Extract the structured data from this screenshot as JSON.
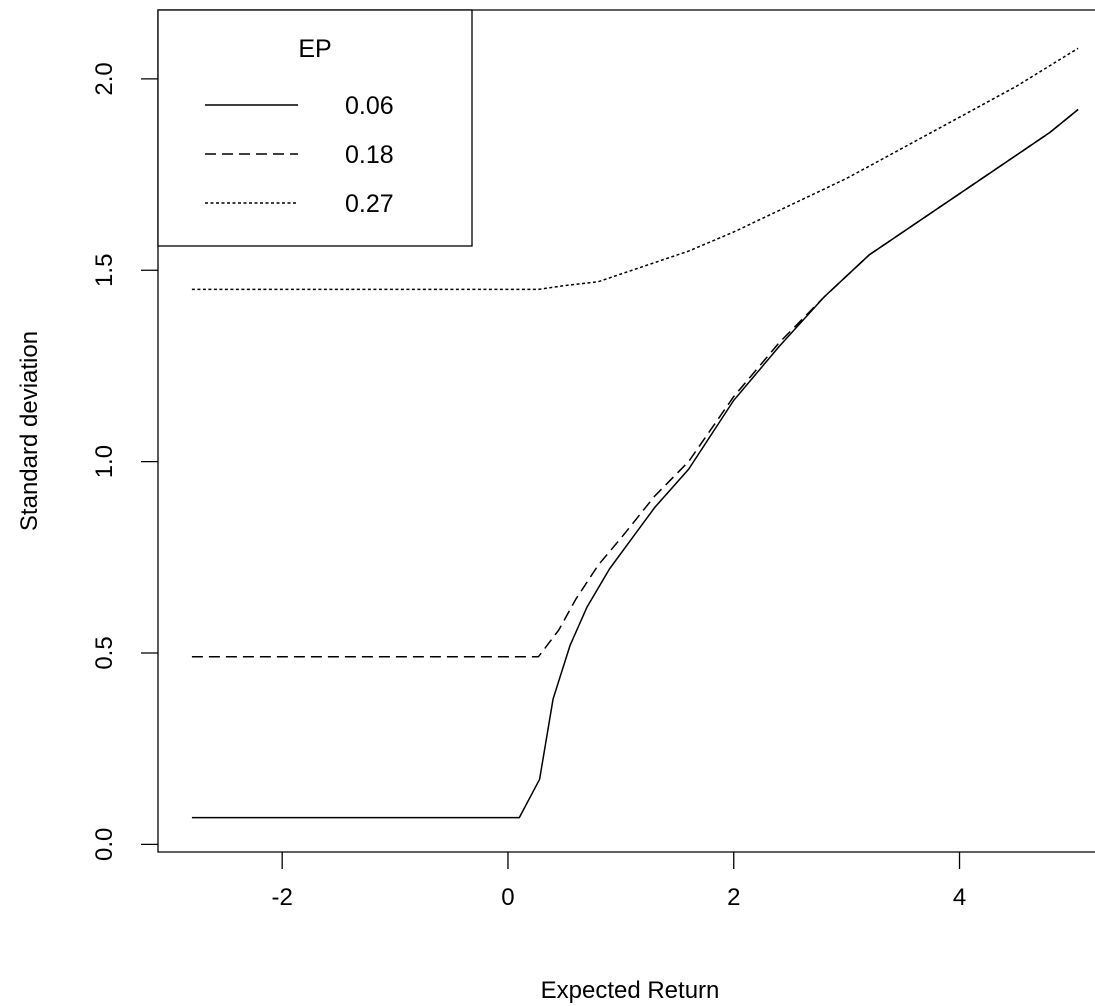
{
  "chart_data": {
    "type": "line",
    "xlabel": "Expected Return",
    "ylabel": "Standard deviation",
    "xlim": [
      -3.1,
      5.2
    ],
    "ylim": [
      -0.02,
      2.18
    ],
    "x_ticks": [
      -2,
      0,
      2,
      4
    ],
    "x_tick_labels": [
      "-2",
      "0",
      "2",
      "4"
    ],
    "y_ticks": [
      0.0,
      0.5,
      1.0,
      1.5,
      2.0
    ],
    "y_tick_labels": [
      "0.0",
      "0.5",
      "1.0",
      "1.5",
      "2.0"
    ],
    "grid": false,
    "legend": {
      "title": "EP",
      "position": "top-left",
      "entries": [
        "0.06",
        "0.18",
        "0.27"
      ]
    },
    "series": [
      {
        "name": "0.06",
        "line_style": "solid",
        "x": [
          -2.8,
          -1.5,
          -0.5,
          0.1,
          0.28,
          0.4,
          0.55,
          0.7,
          0.9,
          1.1,
          1.3,
          1.6,
          2.0,
          2.4,
          2.8,
          3.2,
          3.6,
          4.0,
          4.4,
          4.8,
          5.05
        ],
        "y": [
          0.07,
          0.07,
          0.07,
          0.07,
          0.17,
          0.38,
          0.52,
          0.62,
          0.72,
          0.8,
          0.88,
          0.98,
          1.16,
          1.3,
          1.43,
          1.54,
          1.62,
          1.7,
          1.78,
          1.86,
          1.92
        ]
      },
      {
        "name": "0.18",
        "line_style": "dashed",
        "x": [
          -2.8,
          -1.5,
          -0.5,
          0.0,
          0.27,
          0.45,
          0.6,
          0.8,
          1.0,
          1.3,
          1.6,
          2.0,
          2.4,
          2.8,
          3.2,
          3.6,
          4.0,
          4.4,
          4.8,
          5.05
        ],
        "y": [
          0.49,
          0.49,
          0.49,
          0.49,
          0.49,
          0.56,
          0.64,
          0.73,
          0.8,
          0.91,
          1.0,
          1.17,
          1.31,
          1.43,
          1.54,
          1.62,
          1.7,
          1.78,
          1.86,
          1.92
        ]
      },
      {
        "name": "0.27",
        "line_style": "dotted",
        "x": [
          -2.8,
          -1.5,
          -0.5,
          0.0,
          0.27,
          0.5,
          0.8,
          1.2,
          1.6,
          2.0,
          2.5,
          3.0,
          3.5,
          4.0,
          4.5,
          5.05
        ],
        "y": [
          1.45,
          1.45,
          1.45,
          1.45,
          1.45,
          1.46,
          1.47,
          1.51,
          1.55,
          1.6,
          1.67,
          1.74,
          1.82,
          1.9,
          1.98,
          2.08
        ]
      }
    ]
  }
}
